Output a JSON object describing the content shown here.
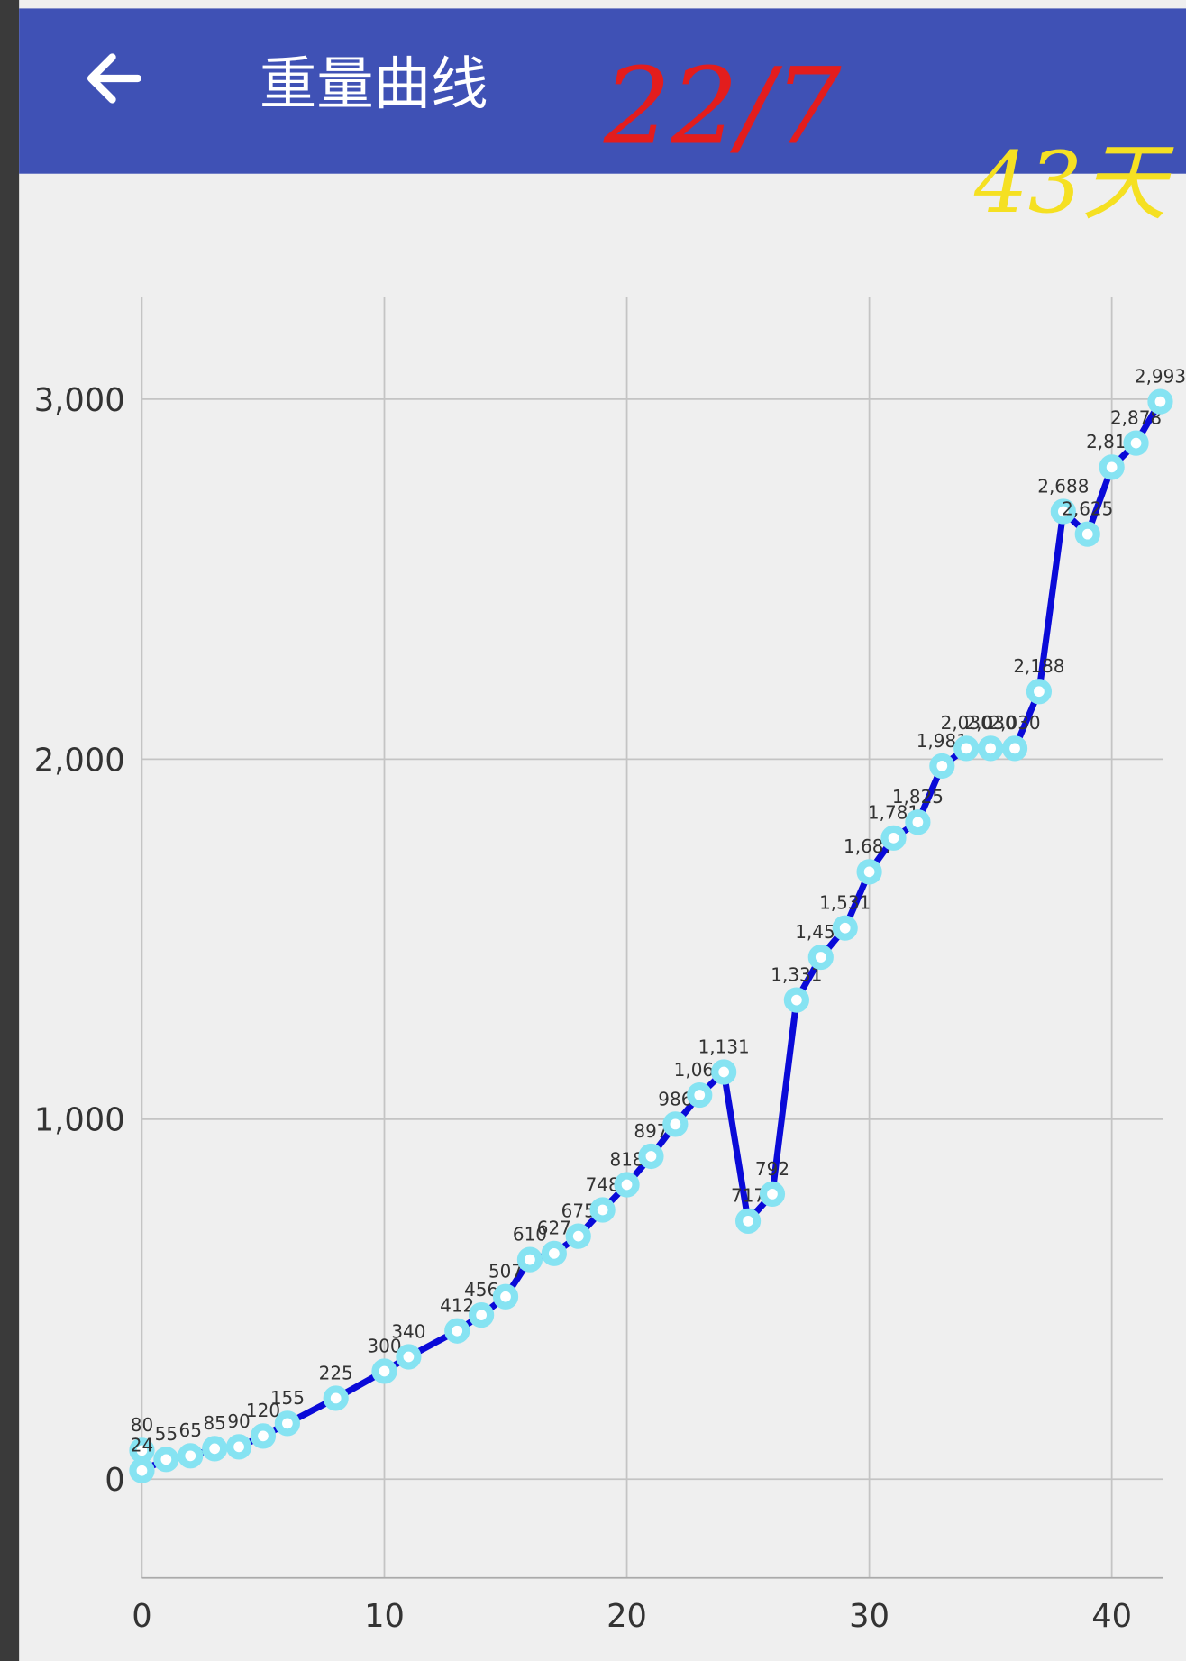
{
  "chart_data": {
    "type": "line",
    "title": "重量曲线",
    "annotations": [
      "22/7",
      "43天"
    ],
    "x": [
      0,
      0,
      1,
      2,
      3,
      4,
      5,
      6,
      8,
      10,
      11,
      13,
      14,
      15,
      16,
      17,
      18,
      19,
      20,
      21,
      22,
      23,
      24,
      25,
      26,
      27,
      28,
      29,
      30,
      31,
      32,
      33,
      34,
      35,
      36,
      37,
      38,
      39,
      40,
      41,
      42
    ],
    "values": [
      80,
      24,
      55,
      65,
      85,
      90,
      120,
      155,
      225,
      300,
      340,
      412,
      456,
      507,
      610,
      627,
      675,
      748,
      818,
      897,
      986,
      1067,
      1131,
      717,
      792,
      1331,
      1450,
      1531,
      1687,
      1781,
      1825,
      1981,
      2030,
      2030,
      2030,
      2188,
      2688,
      2625,
      2811,
      2878,
      2993
    ],
    "value_labels": [
      "80",
      "24",
      "55",
      "65",
      "85",
      "90",
      "120",
      "155",
      "225",
      "300",
      "340",
      "412",
      "456",
      "507",
      "610",
      "627",
      "675",
      "748",
      "818",
      "897",
      "986",
      "1,067",
      "1,131",
      "717",
      "792",
      "1,331",
      "1,450",
      "1,531",
      "1,687",
      "1,781",
      "1,825",
      "1,981",
      "2,030",
      "2,030",
      "2,030",
      "2,188",
      "2,688",
      "2,625",
      "2,811",
      "2,878",
      "2,993"
    ],
    "color": "#0a0ad8",
    "marker_color": "#86e3f2",
    "xlim": [
      0,
      42.1
    ],
    "ylim": [
      -274,
      3285
    ],
    "xticks": [
      0,
      10,
      20,
      30,
      40
    ],
    "yticks": [
      0,
      {
        "value": 1000,
        "label": "1,000"
      },
      {
        "value": 2000,
        "label": "2,000"
      },
      {
        "value": 3000,
        "label": "3,000"
      }
    ],
    "grid": true
  }
}
